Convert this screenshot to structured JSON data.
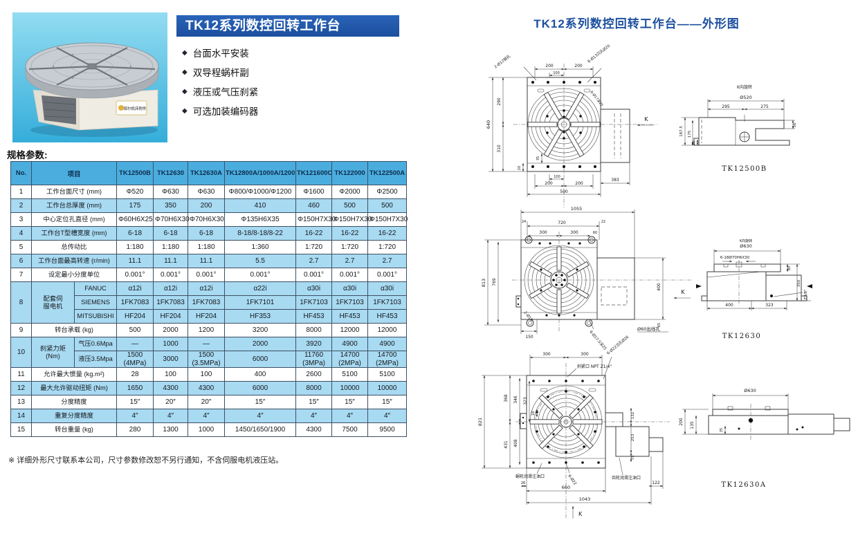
{
  "colors": {
    "banner_blue": "#1c4f9e",
    "outline_title_blue": "#1c4f9e",
    "table_header_blue": "#4badde",
    "table_row_blue": "#a8daf2",
    "photo_cyan": "#35adda"
  },
  "product": {
    "banner_title": "TK12系列数控回转工作台",
    "features": [
      "台面水平安装",
      "双导程蜗杆副",
      "液压或气压刹紧",
      "可选加装编码器"
    ],
    "photo_label": "保尔机床附件"
  },
  "specs": {
    "section_title": "规格参数:",
    "headers": [
      "No.",
      "项目",
      "TK12500B",
      "TK12630",
      "TK12630A",
      "TK12800A/1000A/1200",
      "TK121600C",
      "TK122000",
      "TK122500A"
    ],
    "rows": [
      {
        "no": "1",
        "item": "工作台面尺寸 (mm)",
        "values": [
          "Φ520",
          "Φ630",
          "Φ630",
          "Φ800/Φ1000/Φ1200",
          "Φ1600",
          "Φ2000",
          "Φ2500"
        ]
      },
      {
        "no": "2",
        "item": "工作台总厚度 (mm)",
        "values": [
          "175",
          "350",
          "200",
          "410",
          "460",
          "500",
          "500"
        ]
      },
      {
        "no": "3",
        "item": "中心定位孔直径 (mm)",
        "values": [
          "Φ60H6X25",
          "Φ70H6X30",
          "Φ70H6X30",
          "Φ135H6X35",
          "Φ150H7X30",
          "Φ150H7X30",
          "Φ150H7X30"
        ]
      },
      {
        "no": "4",
        "item": "工作台T型槽宽度 (mm)",
        "values": [
          "6-18",
          "6-18",
          "6-18",
          "8-18/8-18/8-22",
          "16-22",
          "16-22",
          "16-22"
        ]
      },
      {
        "no": "5",
        "item": "总传动比",
        "values": [
          "1:180",
          "1:180",
          "1:180",
          "1:360",
          "1:720",
          "1:720",
          "1:720"
        ]
      },
      {
        "no": "6",
        "item": "工作台面最高转速 (r/min)",
        "values": [
          "11.1",
          "11.1",
          "11.1",
          "5.5",
          "2.7",
          "2.7",
          "2.7"
        ]
      },
      {
        "no": "7",
        "item": "设定最小分度单位",
        "values": [
          "0.001°",
          "0.001°",
          "0.001°",
          "0.001°",
          "0.001°",
          "0.001°",
          "0.001°"
        ]
      },
      {
        "no": "8",
        "item": "配套伺\n服电机",
        "sub": [
          {
            "name": "FANUC",
            "values": [
              "α12i",
              "α12i",
              "α12i",
              "α22i",
              "α30i",
              "α30i",
              "α30i"
            ]
          },
          {
            "name": "SIEMENS",
            "values": [
              "1FK7083",
              "1FK7083",
              "1FK7083",
              "1FK7101",
              "1FK7103",
              "1FK7103",
              "1FK7103"
            ]
          },
          {
            "name": "MITSUBISHI",
            "values": [
              "HF204",
              "HF204",
              "HF204",
              "HF353",
              "HF453",
              "HF453",
              "HF453"
            ]
          }
        ]
      },
      {
        "no": "9",
        "item": "转台承载 (kg)",
        "values": [
          "500",
          "2000",
          "1200",
          "3200",
          "8000",
          "12000",
          "12000"
        ]
      },
      {
        "no": "10",
        "item": "刹紧力矩\n(Nm)",
        "sub": [
          {
            "name": "气压0.6Mpa",
            "values": [
              "—",
              "1000",
              "—",
              "2000",
              "3920",
              "4900",
              "4900"
            ]
          },
          {
            "name": "液压3.5Mpa",
            "values": [
              "1500\n(4MPa)",
              "3000",
              "1500\n(3.5MPa)",
              "6000",
              "11760\n(3MPa)",
              "14700\n(2MPa)",
              "14700\n(2MPa)"
            ]
          }
        ]
      },
      {
        "no": "11",
        "item": "允许最大惯量 (kg.m²)",
        "values": [
          "28",
          "100",
          "100",
          "400",
          "2600",
          "5100",
          "5100"
        ]
      },
      {
        "no": "12",
        "item": "最大允许驱动扭矩 (Nm)",
        "values": [
          "1650",
          "4300",
          "4300",
          "6000",
          "8000",
          "10000",
          "10000"
        ]
      },
      {
        "no": "13",
        "item": "分度精度",
        "values": [
          "15″",
          "20″",
          "20″",
          "15″",
          "15″",
          "15″",
          "15″"
        ]
      },
      {
        "no": "14",
        "item": "重复分度精度",
        "values": [
          "4″",
          "4″",
          "4″",
          "4″",
          "4″",
          "4″",
          "4″"
        ]
      },
      {
        "no": "15",
        "item": "转台重量 (kg)",
        "values": [
          "280",
          "1300",
          "1000",
          "1450/1650/1900",
          "4300",
          "7500",
          "9500"
        ]
      }
    ],
    "footnote": "※ 详细外形尺寸联系本公司，尺寸参数修改恕不另行通知，不含伺服电机液压站。"
  },
  "outline": {
    "title": "TK12系列数控回转工作台——外形图",
    "d1": {
      "label": "TK12500B",
      "front": {
        "co_pin": "2-Ø12销孔",
        "co_sink": "6-Ø13沉孔Ø20",
        "co_inner": "8-Ø17深25",
        "t200l": "200",
        "t200r": "200",
        "t100": "100",
        "l640": "640",
        "l290": "290",
        "l310": "310",
        "b35": "35",
        "b20": "20",
        "b100": "100",
        "b200l": "200",
        "b200r": "200",
        "b500": "500",
        "b383": "383",
        "k": "K"
      },
      "side": {
        "rot": "K向旋转",
        "dia": "Ø520",
        "s295": "295",
        "s275": "275",
        "s1875": "187.5",
        "s175": "175",
        "s35": "35",
        "s56": "56"
      }
    },
    "d2": {
      "label": "TK12630",
      "front": {
        "t1055": "1055",
        "t24": "24",
        "t720": "720",
        "t22": "22",
        "t300l": "300",
        "t300r": "300",
        "t60": "60",
        "l813": "813",
        "l769": "769",
        "b150": "150",
        "co_pin": "2-Ø16",
        "co_sink": "6-Ø17.5深25",
        "co_wire": "Ø60出线孔",
        "r400": "400",
        "r65": "65",
        "k": "K"
      },
      "side": {
        "rot": "K向旋转",
        "dia": "Ø630",
        "co_slot": "6-18Ø70H6X30",
        "r80": "80",
        "r350": "350",
        "rz": "Z3/8\"",
        "b400": "400",
        "b323": "323"
      }
    },
    "d3": {
      "label": "TK12630A",
      "front": {
        "t300l": "300",
        "t300r": "300",
        "co_brake": "刹紧口 NPT Z1/4\"",
        "co_sink": "6-Ø22沉孔Ø26",
        "l821": "821",
        "l368": "368",
        "l346": "346",
        "l323": "323",
        "l431": "431",
        "l408": "408",
        "l18": "18",
        "r132": "132",
        "r253": "253",
        "r75": "75",
        "co_worm": "蜗轮润滑注油口",
        "co_gear": "齿轮润滑注油口",
        "co_holes": "6-Ø22",
        "b26": "26",
        "b660": "660",
        "b1043": "1043",
        "b122": "122",
        "k": "K"
      },
      "side": {
        "dia": "Ø630",
        "l200": "200",
        "l135": "135",
        "l35": "35"
      }
    }
  }
}
